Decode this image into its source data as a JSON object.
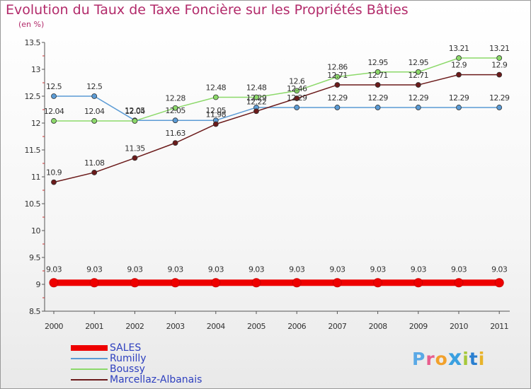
{
  "title": "Evolution du Taux de Taxe Foncière sur les Propriétés Bâties",
  "subtitle": "(en %)",
  "logo": {
    "text": "Proxiti",
    "letters": [
      "P",
      "r",
      "o",
      "x",
      "i",
      "t",
      "i"
    ],
    "colors": [
      "#5aa9e6",
      "#e85d8e",
      "#f2a12c",
      "#3aa0e0",
      "#a6c83a",
      "#2a7fd0",
      "#e8b32a"
    ]
  },
  "legend": [
    {
      "label": "SALES",
      "color": "#ee0000",
      "thickness": 8
    },
    {
      "label": "Rumilly",
      "color": "#5b9bd5",
      "thickness": 2
    },
    {
      "label": "Boussy",
      "color": "#8cd96a",
      "thickness": 2
    },
    {
      "label": "Marcellaz-Albanais",
      "color": "#6b1a1a",
      "thickness": 2
    }
  ],
  "chart_data": {
    "type": "line",
    "title": "Evolution du Taux de Taxe Foncière sur les Propriétés Bâties",
    "ylabel": "(en %)",
    "xlabel": "",
    "x": [
      "2000",
      "2001",
      "2002",
      "2003",
      "2004",
      "2005",
      "2006",
      "2007",
      "2008",
      "2009",
      "2010",
      "2011"
    ],
    "ylim": [
      8.5,
      13.5
    ],
    "yticks": [
      "8.5",
      "9",
      "9.5",
      "10",
      "10.5",
      "11",
      "11.5",
      "12",
      "12.5",
      "13",
      "13.5"
    ],
    "grid": false,
    "series": [
      {
        "name": "SALES",
        "color": "#ee0000",
        "values": [
          9.03,
          9.03,
          9.03,
          9.03,
          9.03,
          9.03,
          9.03,
          9.03,
          9.03,
          9.03,
          9.03,
          9.03
        ],
        "labels": [
          "9.03",
          "9.03",
          "9.03",
          "9.03",
          "9.03",
          "9.03",
          "9.03",
          "9.03",
          "9.03",
          "9.03",
          "9.03",
          "9.03"
        ]
      },
      {
        "name": "Rumilly",
        "color": "#5b9bd5",
        "values": [
          12.5,
          12.5,
          12.05,
          12.05,
          12.05,
          12.29,
          12.29,
          12.29,
          12.29,
          12.29,
          12.29,
          12.29
        ],
        "labels": [
          "12.5",
          "12.5",
          "12.05",
          "12.05",
          "12.05",
          "12.29",
          "12.29",
          "12.29",
          "12.29",
          "12.29",
          "12.29",
          "12.29"
        ]
      },
      {
        "name": "Boussy",
        "color": "#8cd96a",
        "values": [
          12.04,
          12.04,
          12.04,
          12.28,
          12.48,
          12.48,
          12.6,
          12.86,
          12.95,
          12.95,
          13.21,
          13.21
        ],
        "labels": [
          "12.04",
          "12.04",
          "12.04",
          "12.28",
          "12.48",
          "12.48",
          "12.6",
          "12.86",
          "12.95",
          "12.95",
          "13.21",
          "13.21"
        ]
      },
      {
        "name": "Marcellaz-Albanais",
        "color": "#6b1a1a",
        "values": [
          10.9,
          11.08,
          11.35,
          11.63,
          11.98,
          12.22,
          12.46,
          12.71,
          12.71,
          12.71,
          12.9,
          12.9
        ],
        "labels": [
          "10.9",
          "11.08",
          "11.35",
          "11.63",
          "11.98",
          "12.22",
          "12.46",
          "12.71",
          "12.71",
          "12.71",
          "12.9",
          "12.9"
        ]
      }
    ]
  }
}
